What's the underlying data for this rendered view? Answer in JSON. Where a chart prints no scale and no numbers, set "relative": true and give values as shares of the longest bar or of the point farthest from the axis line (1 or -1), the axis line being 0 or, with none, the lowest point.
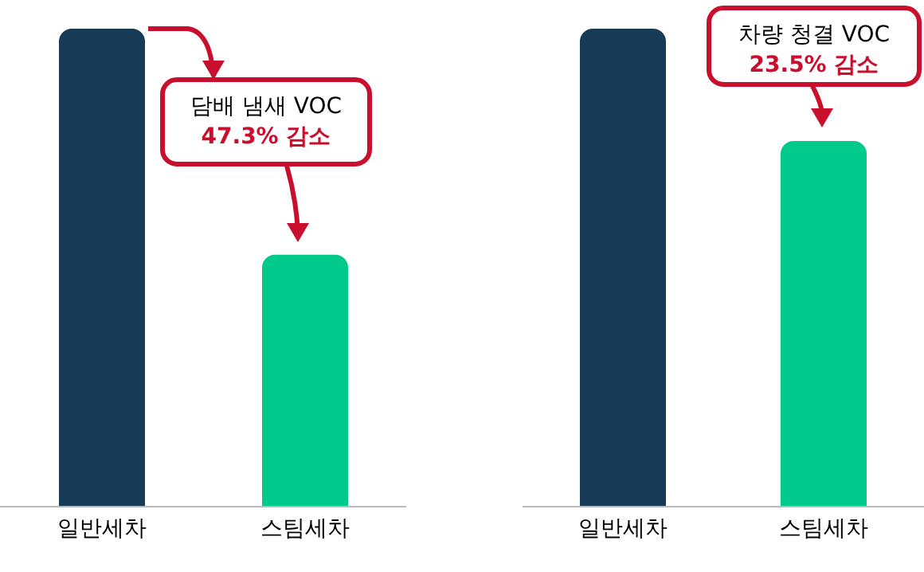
{
  "chart_data": [
    {
      "type": "bar",
      "relative": true,
      "categories": [
        "일반세차",
        "스팀세차"
      ],
      "values": [
        1,
        0.527
      ],
      "colors": [
        "#173a56",
        "#00c98c"
      ],
      "annotations": [
        "담배 냄새 VOC",
        "47.3% 감소"
      ]
    },
    {
      "type": "bar",
      "relative": true,
      "categories": [
        "일반세차",
        "스팀세차"
      ],
      "values": [
        1,
        0.765
      ],
      "colors": [
        "#173a56",
        "#00c98c"
      ],
      "annotations": [
        "차량 청결 VOC",
        "23.5% 감소"
      ]
    }
  ]
}
